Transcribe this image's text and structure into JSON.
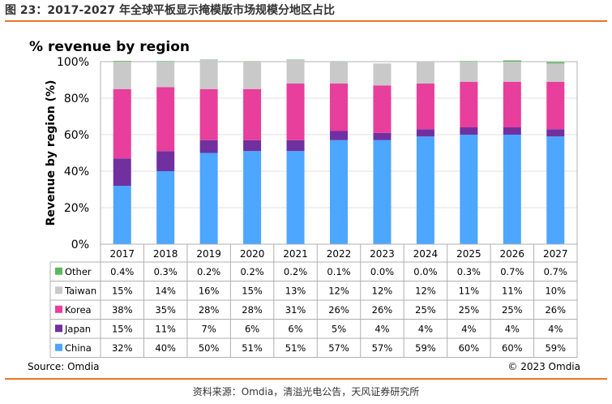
{
  "figure_title": "图 23：2017-2027 年全球平板显示掩模版市场规模分地区占比",
  "footer": "资料来源：Omdia，清溢光电公告，天风证券研究所",
  "chart_data": {
    "type": "bar",
    "stacked": true,
    "title": "% revenue by region",
    "xlabel": "",
    "ylabel": "Revenue by region (%)",
    "ylim": [
      0,
      100
    ],
    "yticks": [
      "0%",
      "20%",
      "40%",
      "60%",
      "80%",
      "100%"
    ],
    "categories": [
      "2017",
      "2018",
      "2019",
      "2020",
      "2021",
      "2022",
      "2023",
      "2024",
      "2025",
      "2026",
      "2027"
    ],
    "series": [
      {
        "name": "China",
        "color": "#4da6ff",
        "values": [
          32,
          40,
          50,
          51,
          51,
          57,
          57,
          59,
          60,
          60,
          59
        ],
        "labels": [
          "32%",
          "40%",
          "50%",
          "51%",
          "51%",
          "57%",
          "57%",
          "59%",
          "60%",
          "60%",
          "59%"
        ]
      },
      {
        "name": "Japan",
        "color": "#7030a0",
        "values": [
          15,
          11,
          7,
          6,
          6,
          5,
          4,
          4,
          4,
          4,
          4
        ],
        "labels": [
          "15%",
          "11%",
          "7%",
          "6%",
          "6%",
          "5%",
          "4%",
          "4%",
          "4%",
          "4%",
          "4%"
        ]
      },
      {
        "name": "Korea",
        "color": "#e83e9c",
        "values": [
          38,
          35,
          28,
          28,
          31,
          26,
          26,
          25,
          25,
          25,
          26
        ],
        "labels": [
          "38%",
          "35%",
          "28%",
          "28%",
          "31%",
          "26%",
          "26%",
          "25%",
          "25%",
          "25%",
          "26%"
        ]
      },
      {
        "name": "Taiwan",
        "color": "#c9c9c9",
        "values": [
          15,
          14,
          16,
          15,
          13,
          12,
          12,
          12,
          11,
          11,
          10
        ],
        "labels": [
          "15%",
          "14%",
          "16%",
          "15%",
          "13%",
          "12%",
          "12%",
          "12%",
          "11%",
          "11%",
          "10%"
        ]
      },
      {
        "name": "Other",
        "color": "#5cb85c",
        "values": [
          0.4,
          0.3,
          0.2,
          0.2,
          0.2,
          0.1,
          0.0,
          0.0,
          0.3,
          0.7,
          0.7
        ],
        "labels": [
          "0.4%",
          "0.3%",
          "0.2%",
          "0.2%",
          "0.2%",
          "0.1%",
          "0.0%",
          "0.0%",
          "0.3%",
          "0.7%",
          "0.7%"
        ]
      }
    ],
    "legend_in_table_order": [
      "Other",
      "Taiwan",
      "Korea",
      "Japan",
      "China"
    ],
    "source": "Source: Omdia",
    "copyright": "© 2023 Omdia"
  }
}
